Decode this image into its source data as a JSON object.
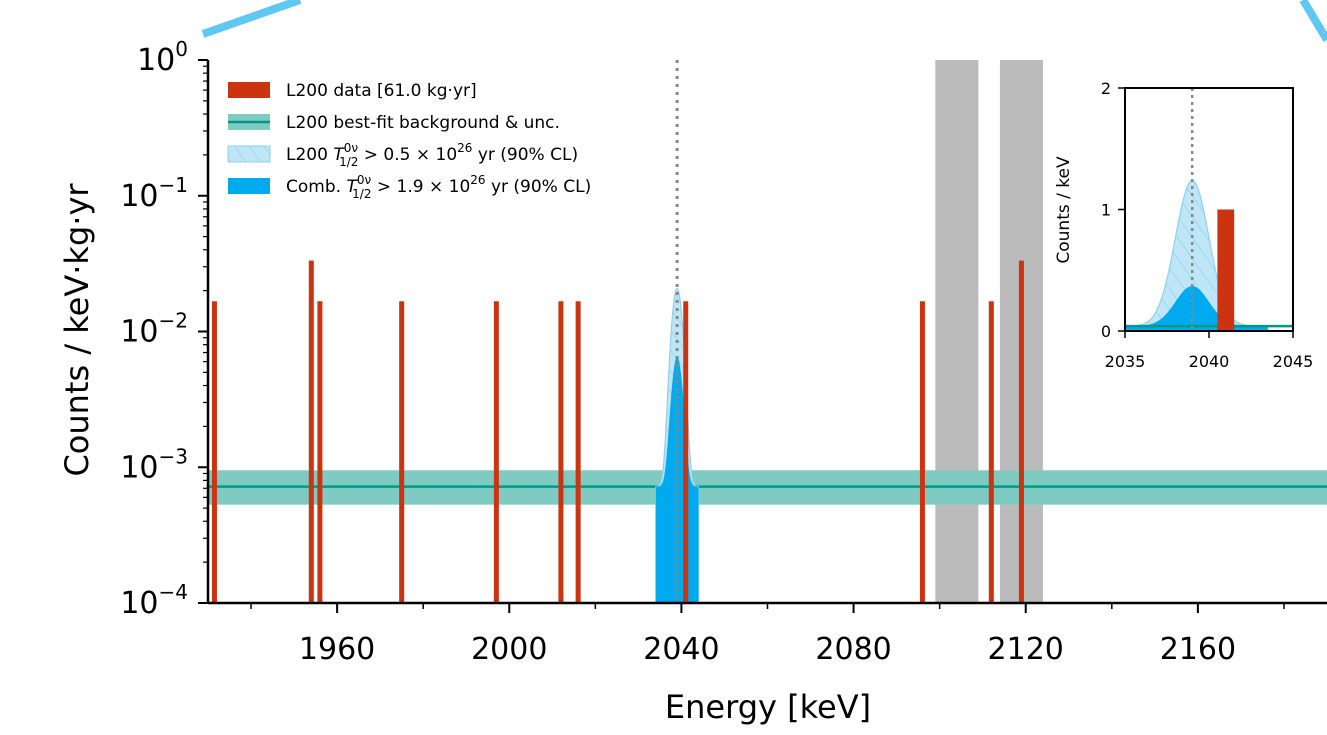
{
  "chart_data": [
    {
      "type": "bar",
      "xlabel": "Energy [keV]",
      "ylabel": "Counts / keV·kg·yr",
      "xlim": [
        1930,
        2190
      ],
      "ylim": [
        0.0001,
        1
      ],
      "yscale": "log",
      "x_ticks": [
        "1960",
        "2000",
        "2040",
        "2080",
        "2120",
        "2160"
      ],
      "y_ticks": [
        {
          "base": "10",
          "exp": "0",
          "value": 1
        },
        {
          "base": "10",
          "exp": "−1",
          "value": 0.1
        },
        {
          "base": "10",
          "exp": "−2",
          "value": 0.01
        },
        {
          "base": "10",
          "exp": "−3",
          "value": 0.001
        },
        {
          "base": "10",
          "exp": "−4",
          "value": 0.0001
        }
      ],
      "legend_position": "top-left",
      "legend": [
        {
          "text": "L200 data [61.0 kg·yr]",
          "kind": "bar",
          "color": "#cc3311"
        },
        {
          "text": "L200 best-fit background & unc.",
          "kind": "band",
          "color": "#009988"
        },
        {
          "text_pre": "L200 ",
          "sym": "T",
          "sup": "0ν",
          "sub": "1/2",
          "text_post": " > 0.5 × 10",
          "post_sup": "26",
          "text_end": " yr (90% CL)",
          "kind": "hatched",
          "color": "#bfe6f7"
        },
        {
          "text_pre": "Comb. ",
          "sym": "T",
          "sup": "0ν",
          "sub": "1/2",
          "text_post": " > 1.9 × 10",
          "post_sup": "26",
          "text_end": " yr (90% CL)",
          "kind": "solid",
          "color": "#00aaee"
        }
      ],
      "data_counts": [
        {
          "x": 1931.5,
          "y": 0.0167
        },
        {
          "x": 1954.0,
          "y": 0.0333
        },
        {
          "x": 1956.0,
          "y": 0.0167
        },
        {
          "x": 1975.0,
          "y": 0.0167
        },
        {
          "x": 1997.0,
          "y": 0.0167
        },
        {
          "x": 2012.0,
          "y": 0.0167
        },
        {
          "x": 2016.0,
          "y": 0.0167
        },
        {
          "x": 2041.0,
          "y": 0.0167
        },
        {
          "x": 2096.0,
          "y": 0.0167
        },
        {
          "x": 2112.0,
          "y": 0.0167
        },
        {
          "x": 2119.0,
          "y": 0.0333
        }
      ],
      "background": {
        "best_fit": 0.00072,
        "low": 0.00053,
        "high": 0.00095
      },
      "excluded_regions": [
        [
          2099,
          2109
        ],
        [
          2114,
          2124
        ]
      ],
      "q_value": 2039,
      "signal_l200_peak": 0.02,
      "signal_comb_peak": 0.0058,
      "signal_sigma_keV": 1.1,
      "colors": {
        "data": "#cc3311",
        "background": "#009988",
        "band": "#7fcbc2",
        "l200_signal": "#bfe6f7",
        "comb_signal": "#00aaee",
        "excluded": "#bbbbbb",
        "qline": "#888888"
      }
    },
    {
      "type": "bar",
      "xlabel": "",
      "ylabel": "Counts / keV",
      "xlim": [
        2035,
        2045
      ],
      "ylim": [
        0,
        2
      ],
      "x_ticks": [
        "2035",
        "2040",
        "2045"
      ],
      "y_ticks": [
        "0",
        "1",
        "2"
      ],
      "data_counts": [
        {
          "x": 2041,
          "y": 1
        }
      ],
      "background": 0.04,
      "signal_l200_peak": 1.2,
      "signal_comb_peak": 0.33,
      "q_value": 2039
    }
  ]
}
